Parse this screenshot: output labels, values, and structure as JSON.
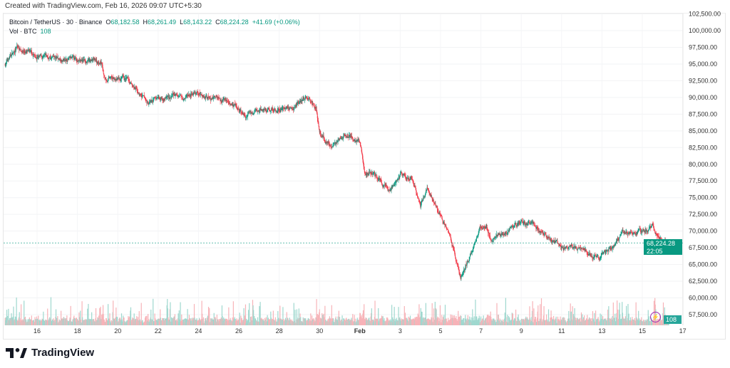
{
  "header": {
    "created": "Created with TradingView.com, Feb 16, 2026 09:07 UTC+5:30"
  },
  "legend": {
    "symbol": "Bitcoin / TetherUS · 30 · Binance",
    "o_label": "O",
    "o": "68,182.58",
    "h_label": "H",
    "h": "68,261.49",
    "l_label": "L",
    "l": "68,143.22",
    "c_label": "C",
    "c": "68,224.28",
    "change": "+41.69 (+0.06%)",
    "vol_label": "Vol · BTC",
    "vol": "108"
  },
  "price_tag": {
    "price": "68,224.28",
    "countdown": "22:05"
  },
  "vol_tag": "108",
  "logo": "TradingView",
  "colors": {
    "up": "#089981",
    "down": "#f23645",
    "vol_up": "#9fd8cf",
    "vol_down": "#f7b3b8",
    "accent": "#089981"
  },
  "chart_data": {
    "type": "candlestick",
    "title": "Bitcoin / TetherUS · 30 · Binance",
    "ylim": [
      56000,
      102500
    ],
    "y_ticks": [
      "102,500.00",
      "100,000.00",
      "97,500.00",
      "95,000.00",
      "92,500.00",
      "90,000.00",
      "87,500.00",
      "85,000.00",
      "82,500.00",
      "80,000.00",
      "77,500.00",
      "75,000.00",
      "72,500.00",
      "70,000.00",
      "67,500.00",
      "65,000.00",
      "62,500.00",
      "60,000.00",
      "57,500.00"
    ],
    "x_ticks": [
      "16",
      "18",
      "20",
      "22",
      "24",
      "26",
      "28",
      "30",
      "Feb",
      "3",
      "5",
      "7",
      "9",
      "11",
      "13",
      "15",
      "17"
    ],
    "grid": true,
    "last_price": 68224.28,
    "approx_close_path": [
      [
        "Jan 14 10:00",
        95000
      ],
      [
        "Jan 15 00:00",
        97500
      ],
      [
        "Jan 16 00:00",
        96000
      ],
      [
        "Jan 19 05:00",
        95300
      ],
      [
        "Jan 19 08:00",
        92800
      ],
      [
        "Jan 20 12:00",
        92500
      ],
      [
        "Jan 21 12:00",
        89000
      ],
      [
        "Jan 22 00:00",
        90000
      ],
      [
        "Jan 24 00:00",
        90500
      ],
      [
        "Jan 25 12:00",
        89500
      ],
      [
        "Jan 26 08:00",
        87000
      ],
      [
        "Jan 27 00:00",
        88000
      ],
      [
        "Jan 28 12:00",
        88500
      ],
      [
        "Jan 29 06:00",
        90000
      ],
      [
        "Jan 29 20:00",
        88500
      ],
      [
        "Jan 30 00:00",
        84500
      ],
      [
        "Jan 30 14:00",
        82500
      ],
      [
        "Jan 31 06:00",
        84500
      ],
      [
        "Feb 1 00:00",
        83500
      ],
      [
        "Feb 1 06:00",
        78500
      ],
      [
        "Feb 1 12:00",
        79000
      ],
      [
        "Feb 2 00:00",
        77500
      ],
      [
        "Feb 2 12:00",
        76000
      ],
      [
        "Feb 3 00:00",
        78500
      ],
      [
        "Feb 3 14:00",
        78000
      ],
      [
        "Feb 4 00:00",
        74000
      ],
      [
        "Feb 4 08:00",
        76500
      ],
      [
        "Feb 5 00:00",
        72500
      ],
      [
        "Feb 5 12:00",
        69000
      ],
      [
        "Feb 6 00:00",
        63000
      ],
      [
        "Feb 6 12:00",
        66500
      ],
      [
        "Feb 6 22:00",
        70500
      ],
      [
        "Feb 7 06:00",
        71000
      ],
      [
        "Feb 7 12:00",
        68500
      ],
      [
        "Feb 8 00:00",
        69500
      ],
      [
        "Feb 9 00:00",
        71500
      ],
      [
        "Feb 10 00:00",
        70000
      ],
      [
        "Feb 11 00:00",
        67500
      ],
      [
        "Feb 12 00:00",
        67500
      ],
      [
        "Feb 12 20:00",
        66000
      ],
      [
        "Feb 13 12:00",
        67500
      ],
      [
        "Feb 14 00:00",
        69500
      ],
      [
        "Feb 15 00:00",
        69800
      ],
      [
        "Feb 15 12:00",
        70500
      ],
      [
        "Feb 16 00:00",
        68500
      ],
      [
        "Feb 16 08:00",
        68224
      ]
    ]
  }
}
